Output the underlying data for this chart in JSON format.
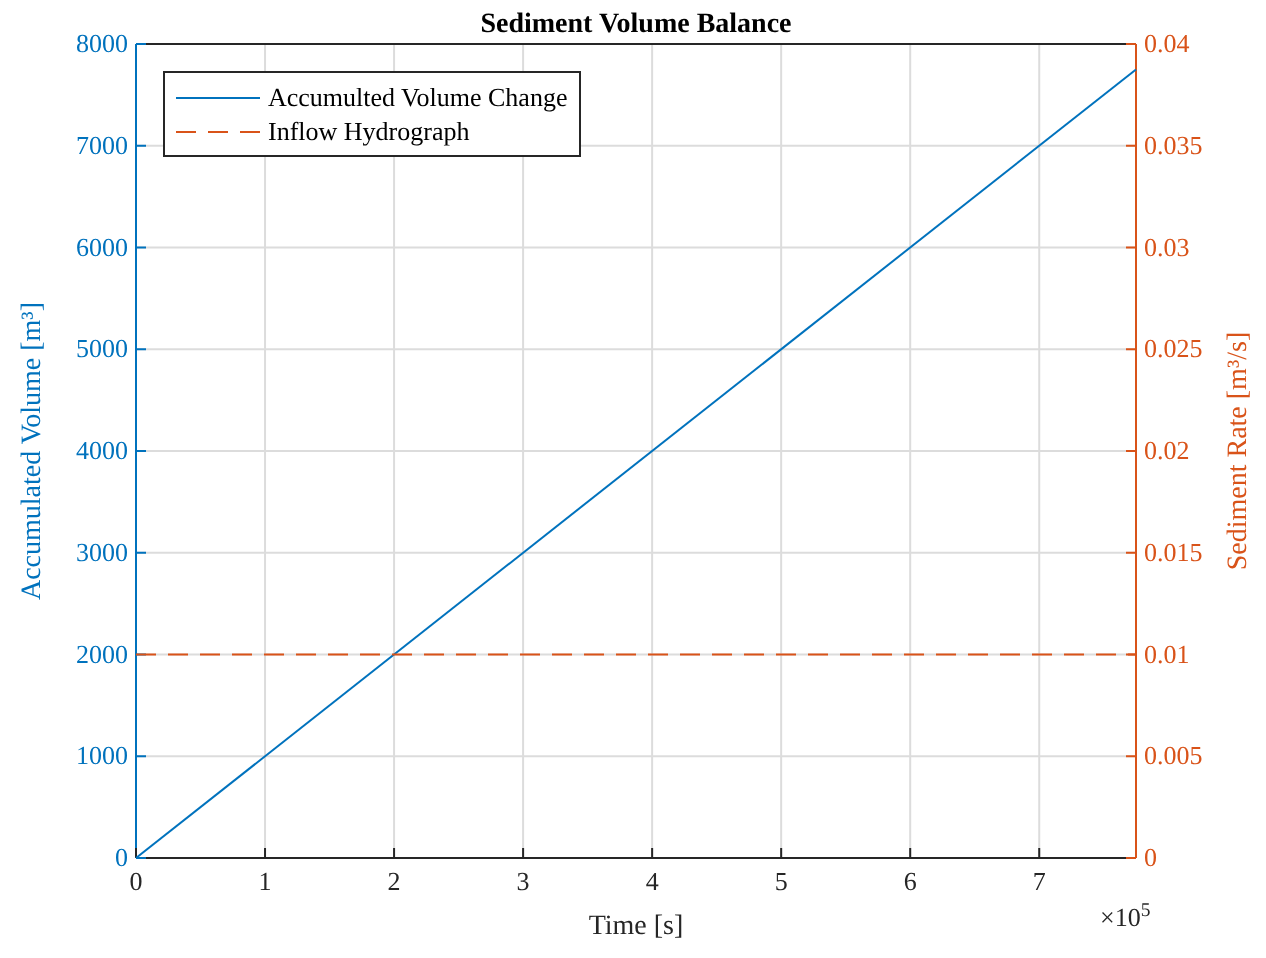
{
  "chart_data": {
    "type": "line",
    "title": "Sediment Volume Balance",
    "xlabel": "Time [s]",
    "ylabel": "Accumulated Volume [m³]",
    "y2label": "Sediment Rate [m³/s]",
    "x": [
      0,
      7.75
    ],
    "series": [
      {
        "name": "Accumulted Volume Change",
        "color": "#0072bd",
        "values": [
          0,
          7750
        ],
        "line_style": "solid"
      },
      {
        "name": "Inflow Hydrograph",
        "color": "#d95319",
        "values": [
          0.01,
          0.01
        ],
        "axis": "y2",
        "line_style": "dashed"
      }
    ],
    "xlim": [
      0,
      7.75
    ],
    "xticks": [
      0,
      1,
      2,
      3,
      4,
      5,
      6,
      7
    ],
    "ylim": [
      0,
      8000
    ],
    "yticks": [
      0,
      1000,
      2000,
      3000,
      4000,
      5000,
      6000,
      7000,
      8000
    ],
    "y2lim": [
      0,
      0.04
    ],
    "y2ticks": [
      0,
      0.005,
      0.01,
      0.015,
      0.02,
      0.025,
      0.03,
      0.035,
      0.04
    ],
    "annotations": [
      "×10$^{5}$"
    ],
    "grid": true,
    "legend": "top left",
    "marker": "none"
  }
}
